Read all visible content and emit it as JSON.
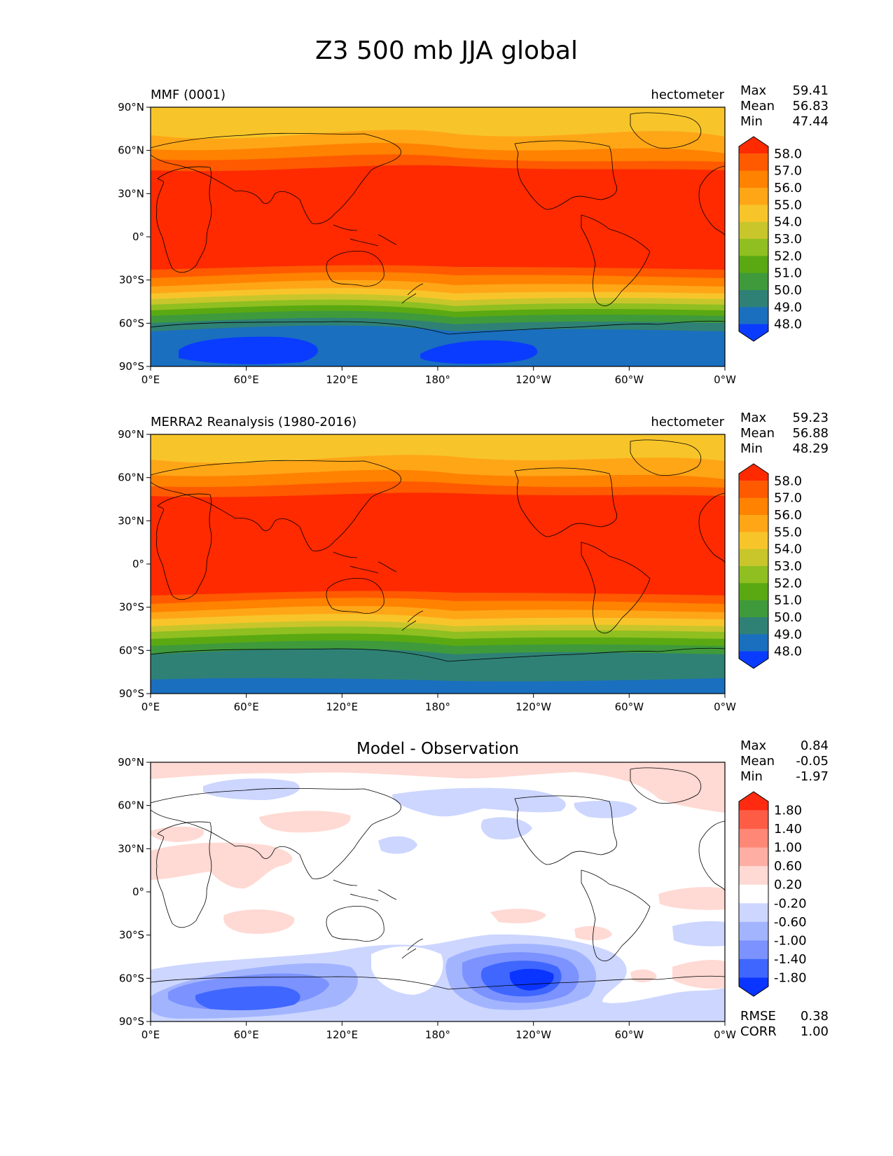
{
  "title": "Z3 500 mb JJA global",
  "chart_data": [
    {
      "type": "heatmap",
      "name": "test",
      "title_left": "MMF (0001)",
      "units": "hectometer",
      "stats": [
        {
          "label": "Max",
          "value": "59.41"
        },
        {
          "label": "Mean",
          "value": "56.83"
        },
        {
          "label": "Min",
          "value": "47.44"
        }
      ],
      "xlabel": "",
      "ylabel": "",
      "x_ticks": [
        "0°E",
        "60°E",
        "120°E",
        "180°",
        "120°W",
        "60°W",
        "0°W"
      ],
      "y_ticks": [
        "90°N",
        "60°N",
        "30°N",
        "0°",
        "30°S",
        "60°S",
        "90°S"
      ],
      "xlim": [
        0,
        360
      ],
      "ylim": [
        -90,
        90
      ],
      "colorbar": {
        "labels": [
          "58.0",
          "57.0",
          "56.0",
          "55.0",
          "54.0",
          "53.0",
          "52.0",
          "51.0",
          "50.0",
          "49.0",
          "48.0"
        ],
        "colors": [
          "#ff2a00",
          "#ff5a00",
          "#ff8200",
          "#ffa617",
          "#f7c52a",
          "#c8c62b",
          "#8fbf20",
          "#5aa912",
          "#3f9a3b",
          "#2f8175",
          "#1a6fbf",
          "#0a3cff"
        ]
      }
    },
    {
      "type": "heatmap",
      "name": "reference",
      "title_left": "MERRA2 Reanalysis (1980-2016)",
      "units": "hectometer",
      "stats": [
        {
          "label": "Max",
          "value": "59.23"
        },
        {
          "label": "Mean",
          "value": "56.88"
        },
        {
          "label": "Min",
          "value": "48.29"
        }
      ],
      "x_ticks": [
        "0°E",
        "60°E",
        "120°E",
        "180°",
        "120°W",
        "60°W",
        "0°W"
      ],
      "y_ticks": [
        "90°N",
        "60°N",
        "30°N",
        "0°",
        "30°S",
        "60°S",
        "90°S"
      ],
      "xlim": [
        0,
        360
      ],
      "ylim": [
        -90,
        90
      ],
      "colorbar": {
        "labels": [
          "58.0",
          "57.0",
          "56.0",
          "55.0",
          "54.0",
          "53.0",
          "52.0",
          "51.0",
          "50.0",
          "49.0",
          "48.0"
        ],
        "colors": [
          "#ff2a00",
          "#ff5a00",
          "#ff8200",
          "#ffa617",
          "#f7c52a",
          "#c8c62b",
          "#8fbf20",
          "#5aa912",
          "#3f9a3b",
          "#2f8175",
          "#1a6fbf",
          "#0a3cff"
        ]
      }
    },
    {
      "type": "heatmap",
      "name": "difference",
      "title_center": "Model - Observation",
      "stats": [
        {
          "label": "Max",
          "value": "0.84"
        },
        {
          "label": "Mean",
          "value": "-0.05"
        },
        {
          "label": "Min",
          "value": "-1.97"
        }
      ],
      "extra_stats": [
        {
          "label": "RMSE",
          "value": "0.38"
        },
        {
          "label": "CORR",
          "value": "1.00"
        }
      ],
      "x_ticks": [
        "0°E",
        "60°E",
        "120°E",
        "180°",
        "120°W",
        "60°W",
        "0°W"
      ],
      "y_ticks": [
        "90°N",
        "60°N",
        "30°N",
        "0°",
        "30°S",
        "60°S",
        "90°S"
      ],
      "xlim": [
        0,
        360
      ],
      "ylim": [
        -90,
        90
      ],
      "colorbar": {
        "labels": [
          "1.80",
          "1.40",
          "1.00",
          "0.60",
          "0.20",
          "-0.20",
          "-0.60",
          "-1.00",
          "-1.40",
          "-1.80"
        ],
        "colors": [
          "#ff2a10",
          "#ff5c46",
          "#ff8776",
          "#ffaea3",
          "#ffd9d3",
          "#ffffff",
          "#ccd6ff",
          "#a3b4ff",
          "#7b92ff",
          "#3f66ff",
          "#0a34ff"
        ]
      }
    }
  ]
}
